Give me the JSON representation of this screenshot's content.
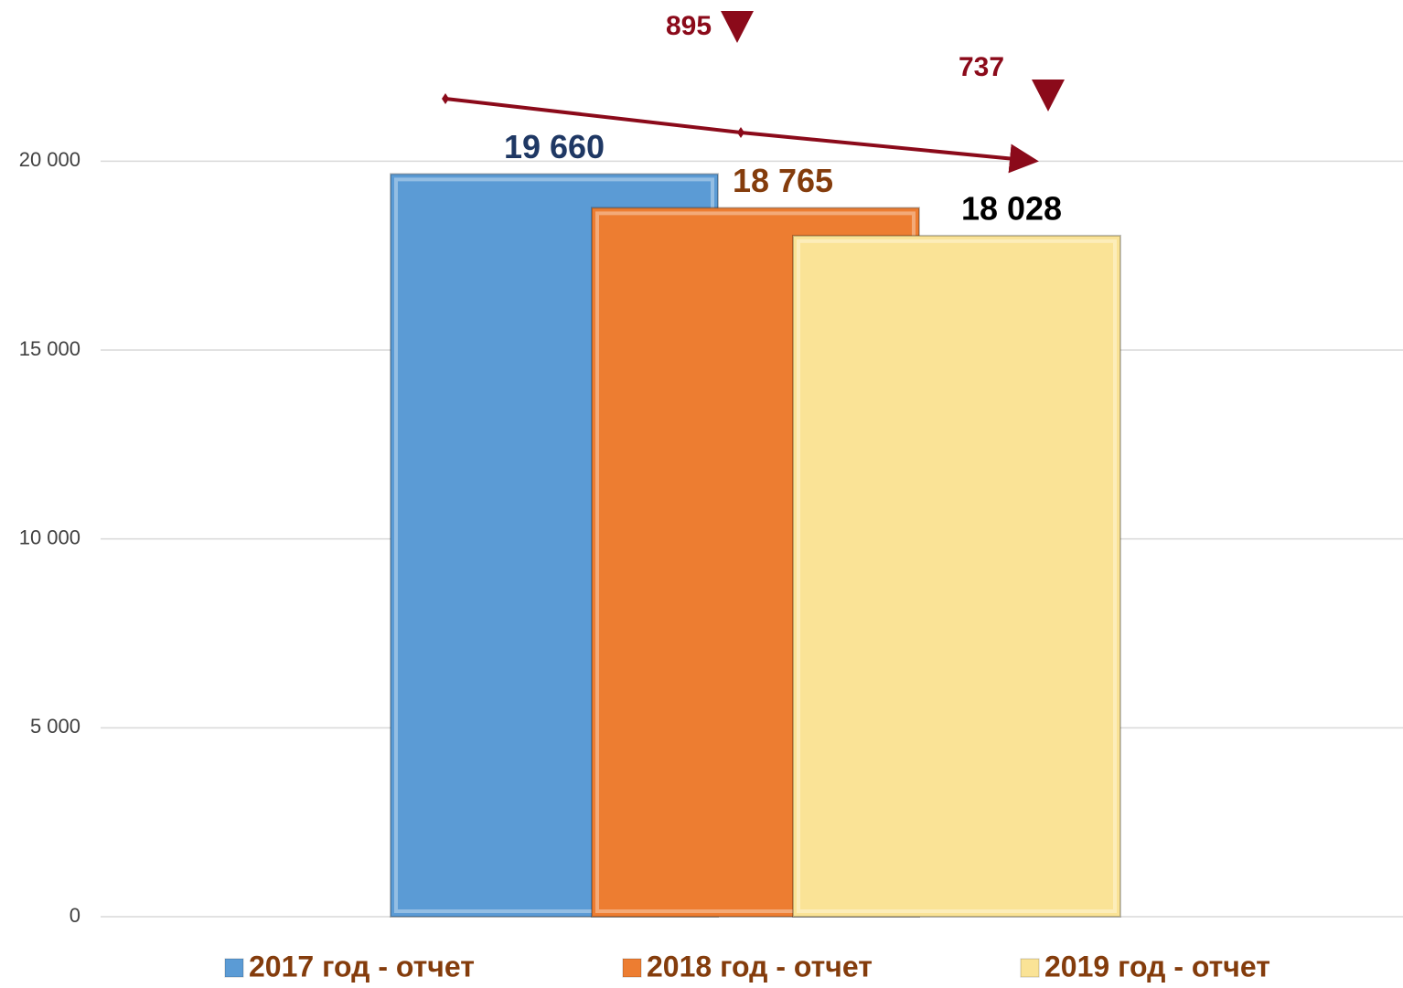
{
  "chart_data": {
    "type": "bar",
    "categories": [
      null
    ],
    "series": [
      {
        "name": "2017 год - отчет",
        "color": "#5b9bd5",
        "label_color": "#1f3864",
        "values": [
          19660
        ],
        "value_labels": [
          "19 660"
        ]
      },
      {
        "name": "2018 год - отчет",
        "color": "#ed7d31",
        "label_color": "#843c0c",
        "values": [
          18765
        ],
        "value_labels": [
          "18 765"
        ]
      },
      {
        "name": "2019 год - отчет",
        "color": "#fae396",
        "label_color": "#000000",
        "values": [
          18028
        ],
        "value_labels": [
          "18 028"
        ]
      }
    ],
    "ylim": [
      0,
      24000
    ],
    "yticks": [
      0,
      {
        "value": 5000,
        "label": "5 000"
      },
      {
        "value": 10000,
        "label": "10 000"
      },
      {
        "value": 15000,
        "label": "15 000"
      },
      {
        "value": 20000,
        "label": "20 000"
      }
    ],
    "grid": true,
    "legend": "bottom",
    "annotations": [
      "895",
      "737"
    ]
  }
}
